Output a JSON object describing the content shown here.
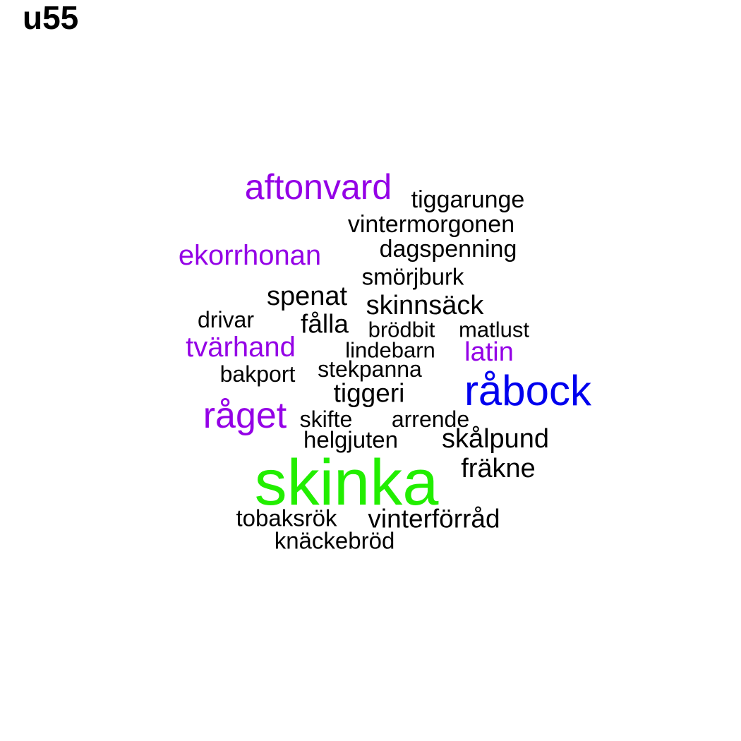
{
  "title": "u55",
  "colors": {
    "purple": "#9400e6",
    "blue": "#0000ee",
    "green": "#22ee00",
    "black": "#000000"
  },
  "words": [
    {
      "text": "aftonvard",
      "color": "purple"
    },
    {
      "text": "tiggarunge",
      "color": "black"
    },
    {
      "text": "vintermorgonen",
      "color": "black"
    },
    {
      "text": "ekorrhonan",
      "color": "purple"
    },
    {
      "text": "dagspenning",
      "color": "black"
    },
    {
      "text": "smörjburk",
      "color": "black"
    },
    {
      "text": "spenat",
      "color": "black"
    },
    {
      "text": "skinnsäck",
      "color": "black"
    },
    {
      "text": "drivar",
      "color": "black"
    },
    {
      "text": "fålla",
      "color": "black"
    },
    {
      "text": "brödbit",
      "color": "black"
    },
    {
      "text": "matlust",
      "color": "black"
    },
    {
      "text": "tvärhand",
      "color": "purple"
    },
    {
      "text": "lindebarn",
      "color": "black"
    },
    {
      "text": "latin",
      "color": "purple"
    },
    {
      "text": "bakport",
      "color": "black"
    },
    {
      "text": "stekpanna",
      "color": "black"
    },
    {
      "text": "råbock",
      "color": "blue"
    },
    {
      "text": "tiggeri",
      "color": "black"
    },
    {
      "text": "råget",
      "color": "purple"
    },
    {
      "text": "skifte",
      "color": "black"
    },
    {
      "text": "arrende",
      "color": "black"
    },
    {
      "text": "helgjuten",
      "color": "black"
    },
    {
      "text": "skålpund",
      "color": "black"
    },
    {
      "text": "fräkne",
      "color": "black"
    },
    {
      "text": "skinka",
      "color": "green"
    },
    {
      "text": "tobaksrök",
      "color": "black"
    },
    {
      "text": "vinterförråd",
      "color": "black"
    },
    {
      "text": "knäckebröd",
      "color": "black"
    }
  ]
}
